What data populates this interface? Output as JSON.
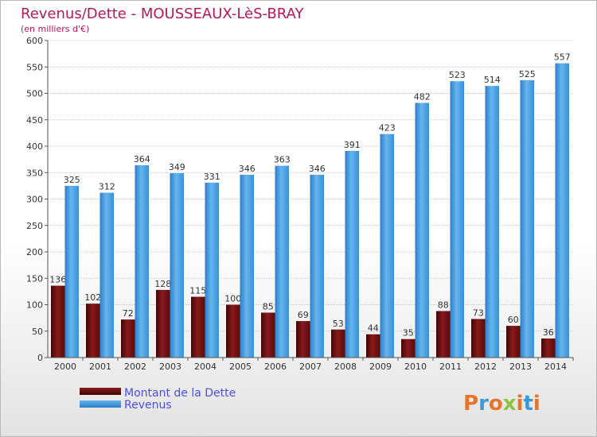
{
  "chart_data": {
    "type": "bar",
    "title": "Revenus/Dette - MOUSSEAUX-LèS-BRAY",
    "subtitle": "(en milliers d'€)",
    "categories": [
      "2000",
      "2001",
      "2002",
      "2003",
      "2004",
      "2005",
      "2006",
      "2007",
      "2008",
      "2009",
      "2010",
      "2011",
      "2012",
      "2013",
      "2014"
    ],
    "series": [
      {
        "name": "Montant de la Dette",
        "color": "#7a1010",
        "values": [
          136,
          102,
          72,
          128,
          115,
          100,
          85,
          69,
          53,
          44,
          35,
          88,
          73,
          60,
          36
        ]
      },
      {
        "name": "Revenus",
        "color": "#4a9fe0",
        "values": [
          325,
          312,
          364,
          349,
          331,
          346,
          363,
          346,
          391,
          423,
          482,
          523,
          514,
          525,
          557
        ]
      }
    ],
    "ylim": [
      0,
      600
    ],
    "yticks": [
      0,
      50,
      100,
      150,
      200,
      250,
      300,
      350,
      400,
      450,
      500,
      550,
      600
    ],
    "grid": true,
    "legend_position": "bottom-left"
  },
  "logo": {
    "text": "Proxiti",
    "letters": [
      "P",
      "r",
      "o",
      "x",
      "i",
      "t",
      "i"
    ],
    "colors": [
      "#e8742a",
      "#3a9ad9",
      "#e8742a",
      "#8cc63f",
      "#e8742a",
      "#3a9ad9",
      "#e8742a"
    ]
  }
}
